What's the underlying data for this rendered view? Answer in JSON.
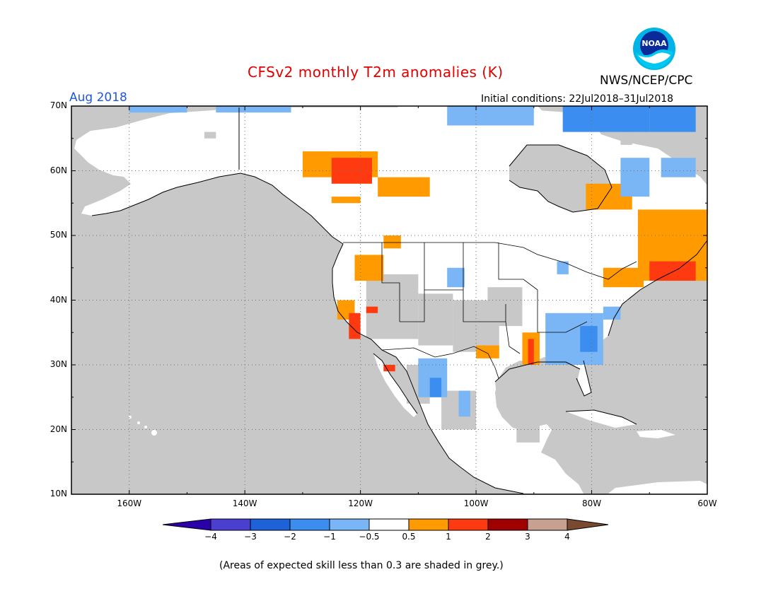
{
  "title": "CFSv2 monthly T2m anomalies (K)",
  "month": "Aug 2018",
  "initial_conditions": "Initial conditions: 22Jul2018–31Jul2018",
  "agency": "NWS/NCEP/CPC",
  "logo_text": "NOAA",
  "footnote": "(Areas of expected skill less than 0.3 are shaded in grey.)",
  "lat_labels": [
    "70N",
    "60N",
    "50N",
    "40N",
    "30N",
    "20N",
    "10N"
  ],
  "lon_labels": [
    "160W",
    "140W",
    "120W",
    "100W",
    "80W",
    "60W"
  ],
  "colorbar": {
    "labels": [
      "−4",
      "−3",
      "−2",
      "−1",
      "−0.5",
      "0.5",
      "1",
      "2",
      "3",
      "4"
    ],
    "colors": [
      "#2a00a8",
      "#4a3fd0",
      "#1d62d8",
      "#3b8ef0",
      "#7ab6f5",
      "#ffffff",
      "#ff9b00",
      "#ff3a10",
      "#a00000",
      "#c8a090",
      "#7a4a30"
    ]
  },
  "colors": {
    "skill_grey": "#c8c8c8",
    "warm_light": "#ff9b00",
    "warm_mid": "#ff3a10",
    "warm_dark": "#a00000",
    "cool_light": "#7ab6f5",
    "cool_mid": "#3b8ef0"
  }
}
